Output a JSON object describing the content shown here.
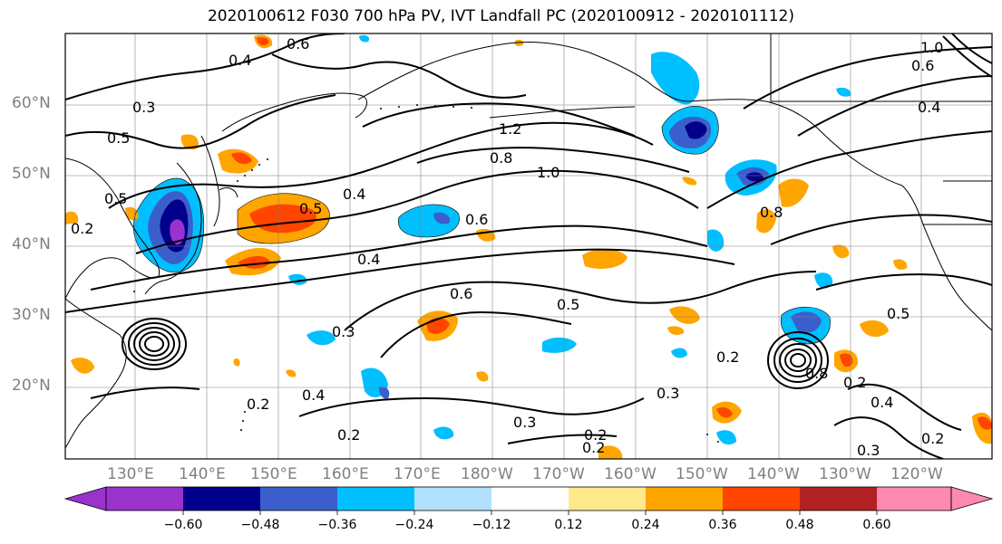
{
  "title": "2020100612 F030 700 hPa PV, IVT Landfall PC (2020100912 - 2020101112)",
  "lat_labels": [
    "60°N",
    "50°N",
    "40°N",
    "30°N",
    "20°N"
  ],
  "lon_labels": [
    "130°E",
    "140°E",
    "150°E",
    "160°E",
    "170°E",
    "180°W",
    "170°W",
    "160°W",
    "150°W",
    "140°W",
    "130°W",
    "120°W"
  ],
  "contour_labels": [
    "0.6",
    "0.4",
    "0.3",
    "0.5",
    "1.2",
    "0.8",
    "1.0",
    "0.5",
    "0.4",
    "0.6",
    "0.4",
    "0.6",
    "0.5",
    "0.3",
    "0.2",
    "0.4",
    "0.2",
    "0.3",
    "0.2",
    "0.2",
    "0.3",
    "0.4",
    "0.2",
    "1.0",
    "0.6",
    "0.4",
    "0.8",
    "0.5",
    "0.2",
    "0.8",
    "0.2",
    "0.5",
    "0.3",
    "0.2"
  ],
  "colorbar": {
    "ticks": [
      "−0.60",
      "−0.48",
      "−0.36",
      "−0.24",
      "−0.12",
      "0.12",
      "0.24",
      "0.36",
      "0.48",
      "0.60"
    ],
    "colors": [
      "#9a32cd",
      "#00008b",
      "#3a5fcd",
      "#00bfff",
      "#b2e0ff",
      "#ffffff",
      "#ffe98a",
      "#ffa500",
      "#ff4500",
      "#b22222",
      "#ff88b0"
    ]
  }
}
